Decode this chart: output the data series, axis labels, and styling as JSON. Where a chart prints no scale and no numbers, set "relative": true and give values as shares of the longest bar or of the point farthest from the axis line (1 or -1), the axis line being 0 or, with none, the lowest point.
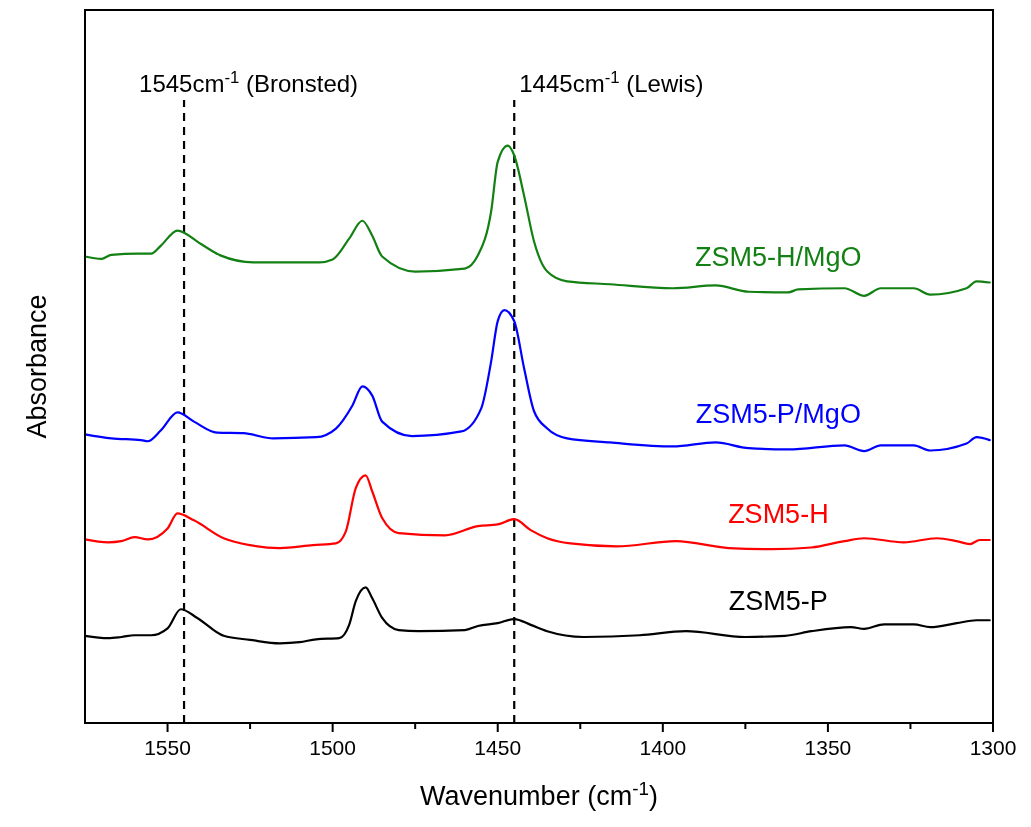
{
  "chart_data": {
    "type": "line",
    "xlabel": "Wavenumber (cm$^{-1}$)",
    "ylabel": "Absorbance",
    "relative": true,
    "grid": false,
    "marker": "none",
    "line_style": "solid",
    "xlim": [
      1575,
      1300
    ],
    "xticks": [
      1550,
      {
        "value": 1525,
        "label": null
      },
      1500,
      {
        "value": 1475,
        "label": null
      },
      1450,
      {
        "value": 1425,
        "label": null
      },
      1400,
      {
        "value": 1375,
        "label": null
      },
      1350,
      {
        "value": 1325,
        "label": null
      },
      1300
    ],
    "ref_lines": [
      {
        "axis": "x",
        "value": 1545,
        "label": "1545cm$^{-1}$ (Bronsted)",
        "color": "#000000",
        "line_style": "dashed"
      },
      {
        "axis": "x",
        "value": 1445,
        "label": "1445cm$^{-1}$ (Lewis)",
        "color": "#000000",
        "line_style": "dashed"
      }
    ],
    "series": [
      {
        "name": "ZSM5-H/MgO",
        "color": "#138013",
        "x": [
          1575,
          1570,
          1567,
          1559,
          1555,
          1552,
          1547,
          1540,
          1534,
          1524,
          1504,
          1500,
          1495,
          1491,
          1488,
          1485,
          1475,
          1460,
          1456,
          1452,
          1450,
          1447,
          1445,
          1442,
          1439,
          1435,
          1429,
          1416,
          1397,
          1384,
          1374,
          1362,
          1359,
          1345,
          1339,
          1334,
          1324,
          1319,
          1308,
          1305,
          1301
        ],
        "values": [
          0.808,
          0.804,
          0.811,
          0.813,
          0.813,
          0.827,
          0.853,
          0.83,
          0.81,
          0.798,
          0.798,
          0.803,
          0.839,
          0.87,
          0.844,
          0.808,
          0.782,
          0.787,
          0.81,
          0.886,
          0.972,
          1.0,
          0.983,
          0.913,
          0.834,
          0.782,
          0.765,
          0.76,
          0.753,
          0.758,
          0.747,
          0.746,
          0.751,
          0.753,
          0.74,
          0.753,
          0.753,
          0.742,
          0.753,
          0.765,
          0.763
        ]
      },
      {
        "name": "ZSM5-P/MgO",
        "color": "#0000ff",
        "x": [
          1575,
          1567,
          1558,
          1556,
          1552,
          1547,
          1542,
          1535,
          1527,
          1518,
          1505,
          1499,
          1494,
          1491,
          1488,
          1485,
          1476,
          1461,
          1455,
          1452,
          1450,
          1448,
          1445,
          1442,
          1439,
          1435,
          1429,
          1416,
          1397,
          1384,
          1374,
          1362,
          1345,
          1339,
          1334,
          1324,
          1319,
          1308,
          1305,
          1301
        ],
        "values": [
          0.5,
          0.493,
          0.49,
          0.488,
          0.507,
          0.538,
          0.522,
          0.503,
          0.502,
          0.493,
          0.495,
          0.51,
          0.55,
          0.583,
          0.567,
          0.522,
          0.497,
          0.505,
          0.545,
          0.626,
          0.696,
          0.715,
          0.696,
          0.614,
          0.54,
          0.51,
          0.493,
          0.486,
          0.479,
          0.486,
          0.476,
          0.474,
          0.481,
          0.471,
          0.481,
          0.481,
          0.472,
          0.484,
          0.495,
          0.49
        ]
      },
      {
        "name": "ZSM5-H",
        "color": "#ff0000",
        "x": [
          1575,
          1568,
          1564,
          1560,
          1556,
          1550,
          1547,
          1542,
          1533,
          1525,
          1516,
          1506,
          1499,
          1496,
          1493,
          1490,
          1488,
          1485,
          1480,
          1466,
          1456,
          1450,
          1445,
          1440,
          1435,
          1428,
          1414,
          1396,
          1380,
          1367,
          1355,
          1345,
          1339,
          1327,
          1317,
          1311,
          1307,
          1304,
          1301
        ],
        "values": [
          0.318,
          0.313,
          0.315,
          0.322,
          0.318,
          0.337,
          0.363,
          0.351,
          0.32,
          0.308,
          0.303,
          0.308,
          0.311,
          0.332,
          0.407,
          0.429,
          0.401,
          0.355,
          0.329,
          0.325,
          0.341,
          0.344,
          0.353,
          0.334,
          0.32,
          0.311,
          0.306,
          0.315,
          0.303,
          0.301,
          0.304,
          0.315,
          0.32,
          0.313,
          0.32,
          0.315,
          0.31,
          0.317,
          0.317
        ]
      },
      {
        "name": "ZSM5-P",
        "color": "#000000",
        "x": [
          1575,
          1568,
          1564,
          1560,
          1555,
          1550,
          1546,
          1541,
          1533,
          1525,
          1516,
          1510,
          1505,
          1498,
          1495,
          1493,
          1490,
          1488,
          1485,
          1480,
          1474,
          1460,
          1456,
          1450,
          1445,
          1440,
          1435,
          1424,
          1407,
          1393,
          1375,
          1363,
          1355,
          1343,
          1339,
          1333,
          1324,
          1319,
          1311,
          1305,
          1301
        ],
        "values": [
          0.151,
          0.147,
          0.149,
          0.152,
          0.152,
          0.164,
          0.197,
          0.182,
          0.151,
          0.144,
          0.138,
          0.14,
          0.145,
          0.147,
          0.17,
          0.211,
          0.235,
          0.216,
          0.182,
          0.161,
          0.159,
          0.161,
          0.168,
          0.173,
          0.18,
          0.17,
          0.159,
          0.149,
          0.152,
          0.159,
          0.149,
          0.151,
          0.159,
          0.166,
          0.163,
          0.171,
          0.171,
          0.166,
          0.173,
          0.178,
          0.178
        ]
      }
    ]
  }
}
